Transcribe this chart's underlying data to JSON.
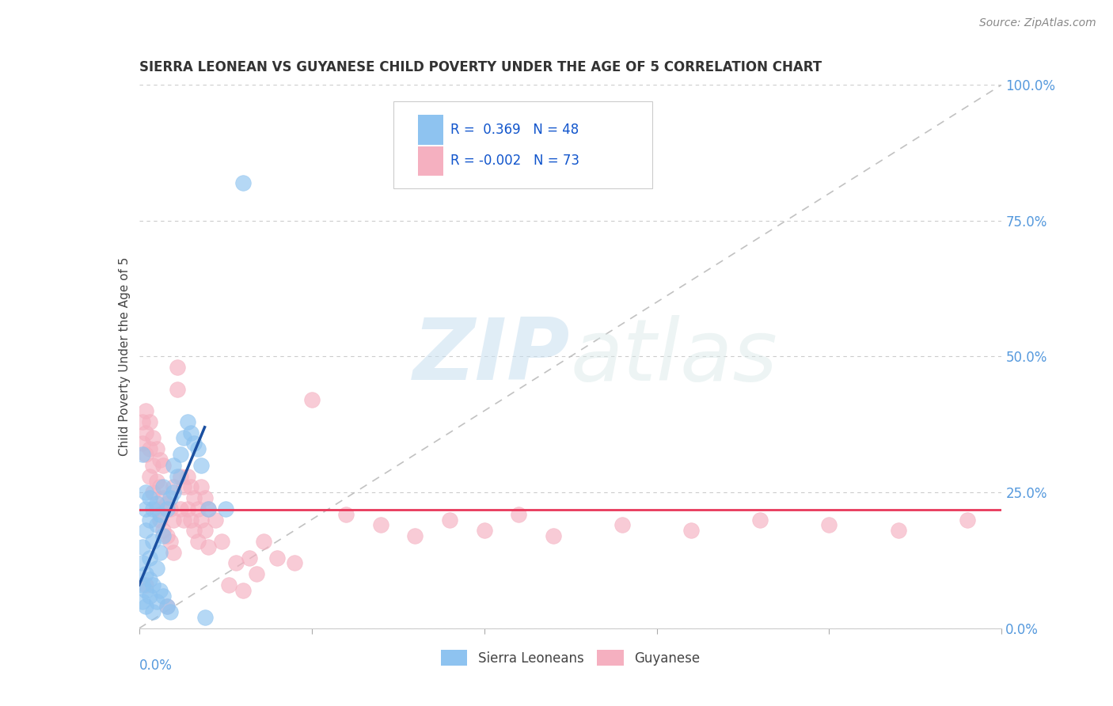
{
  "title": "SIERRA LEONEAN VS GUYANESE CHILD POVERTY UNDER THE AGE OF 5 CORRELATION CHART",
  "source": "Source: ZipAtlas.com",
  "ylabel": "Child Poverty Under the Age of 5",
  "xlim": [
    0.0,
    0.25
  ],
  "ylim": [
    0.0,
    1.0
  ],
  "yticks_right": [
    0.0,
    0.25,
    0.5,
    0.75,
    1.0
  ],
  "ytick_labels_right": [
    "0.0%",
    "25.0%",
    "50.0%",
    "75.0%",
    "100.0%"
  ],
  "grid_color": "#cccccc",
  "background_color": "#ffffff",
  "sierra_color": "#8ec3f0",
  "guyanese_color": "#f5b0c0",
  "sierra_R": 0.369,
  "sierra_N": 48,
  "guyanese_R": -0.002,
  "guyanese_N": 73,
  "legend_label_1": "Sierra Leoneans",
  "legend_label_2": "Guyanese",
  "trend_line_color_sierra": "#1a4fa0",
  "trend_line_color_guyanese": "#e8385a",
  "diagonal_color": "#bbbbbb",
  "watermark_zip": "ZIP",
  "watermark_atlas": "atlas",
  "sierra_points": [
    [
      0.001,
      0.05
    ],
    [
      0.001,
      0.08
    ],
    [
      0.001,
      0.12
    ],
    [
      0.001,
      0.15
    ],
    [
      0.002,
      0.04
    ],
    [
      0.002,
      0.07
    ],
    [
      0.002,
      0.1
    ],
    [
      0.002,
      0.18
    ],
    [
      0.002,
      0.22
    ],
    [
      0.002,
      0.25
    ],
    [
      0.003,
      0.06
    ],
    [
      0.003,
      0.09
    ],
    [
      0.003,
      0.13
    ],
    [
      0.003,
      0.2
    ],
    [
      0.003,
      0.24
    ],
    [
      0.004,
      0.03
    ],
    [
      0.004,
      0.08
    ],
    [
      0.004,
      0.16
    ],
    [
      0.004,
      0.22
    ],
    [
      0.005,
      0.05
    ],
    [
      0.005,
      0.11
    ],
    [
      0.005,
      0.19
    ],
    [
      0.005,
      0.23
    ],
    [
      0.006,
      0.07
    ],
    [
      0.006,
      0.14
    ],
    [
      0.006,
      0.21
    ],
    [
      0.007,
      0.06
    ],
    [
      0.007,
      0.17
    ],
    [
      0.007,
      0.26
    ],
    [
      0.008,
      0.04
    ],
    [
      0.008,
      0.22
    ],
    [
      0.009,
      0.03
    ],
    [
      0.009,
      0.24
    ],
    [
      0.01,
      0.25
    ],
    [
      0.01,
      0.3
    ],
    [
      0.011,
      0.28
    ],
    [
      0.012,
      0.32
    ],
    [
      0.013,
      0.35
    ],
    [
      0.014,
      0.38
    ],
    [
      0.015,
      0.36
    ],
    [
      0.016,
      0.34
    ],
    [
      0.017,
      0.33
    ],
    [
      0.018,
      0.3
    ],
    [
      0.019,
      0.02
    ],
    [
      0.02,
      0.22
    ],
    [
      0.025,
      0.22
    ],
    [
      0.03,
      0.82
    ],
    [
      0.001,
      0.32
    ]
  ],
  "guyanese_points": [
    [
      0.001,
      0.34
    ],
    [
      0.001,
      0.38
    ],
    [
      0.002,
      0.32
    ],
    [
      0.002,
      0.36
    ],
    [
      0.002,
      0.4
    ],
    [
      0.003,
      0.28
    ],
    [
      0.003,
      0.33
    ],
    [
      0.003,
      0.38
    ],
    [
      0.004,
      0.25
    ],
    [
      0.004,
      0.3
    ],
    [
      0.004,
      0.35
    ],
    [
      0.005,
      0.22
    ],
    [
      0.005,
      0.27
    ],
    [
      0.005,
      0.33
    ],
    [
      0.006,
      0.2
    ],
    [
      0.006,
      0.26
    ],
    [
      0.006,
      0.31
    ],
    [
      0.007,
      0.18
    ],
    [
      0.007,
      0.24
    ],
    [
      0.007,
      0.3
    ],
    [
      0.008,
      0.17
    ],
    [
      0.008,
      0.23
    ],
    [
      0.008,
      0.04
    ],
    [
      0.009,
      0.16
    ],
    [
      0.009,
      0.22
    ],
    [
      0.01,
      0.14
    ],
    [
      0.01,
      0.2
    ],
    [
      0.01,
      0.26
    ],
    [
      0.011,
      0.44
    ],
    [
      0.011,
      0.48
    ],
    [
      0.012,
      0.22
    ],
    [
      0.012,
      0.28
    ],
    [
      0.013,
      0.2
    ],
    [
      0.013,
      0.26
    ],
    [
      0.014,
      0.22
    ],
    [
      0.014,
      0.28
    ],
    [
      0.015,
      0.2
    ],
    [
      0.015,
      0.26
    ],
    [
      0.016,
      0.18
    ],
    [
      0.016,
      0.24
    ],
    [
      0.017,
      0.16
    ],
    [
      0.017,
      0.22
    ],
    [
      0.018,
      0.2
    ],
    [
      0.018,
      0.26
    ],
    [
      0.019,
      0.18
    ],
    [
      0.019,
      0.24
    ],
    [
      0.02,
      0.15
    ],
    [
      0.02,
      0.22
    ],
    [
      0.022,
      0.2
    ],
    [
      0.024,
      0.16
    ],
    [
      0.026,
      0.08
    ],
    [
      0.028,
      0.12
    ],
    [
      0.03,
      0.07
    ],
    [
      0.032,
      0.13
    ],
    [
      0.034,
      0.1
    ],
    [
      0.036,
      0.16
    ],
    [
      0.04,
      0.13
    ],
    [
      0.045,
      0.12
    ],
    [
      0.05,
      0.42
    ],
    [
      0.06,
      0.21
    ],
    [
      0.07,
      0.19
    ],
    [
      0.08,
      0.17
    ],
    [
      0.09,
      0.2
    ],
    [
      0.1,
      0.18
    ],
    [
      0.11,
      0.21
    ],
    [
      0.12,
      0.17
    ],
    [
      0.14,
      0.19
    ],
    [
      0.16,
      0.18
    ],
    [
      0.18,
      0.2
    ],
    [
      0.2,
      0.19
    ],
    [
      0.22,
      0.18
    ],
    [
      0.24,
      0.2
    ],
    [
      0.002,
      0.08
    ]
  ]
}
